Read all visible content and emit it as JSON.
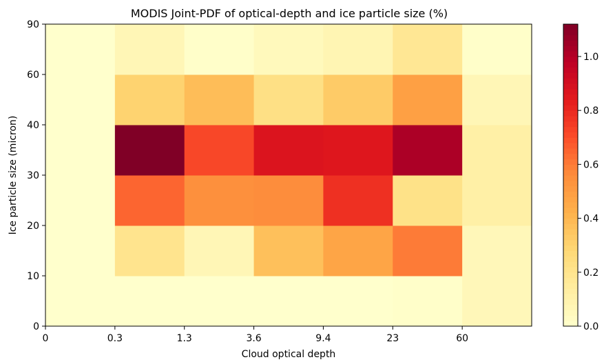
{
  "chart_data": {
    "type": "heatmap",
    "title": "MODIS Joint-PDF of optical-depth and ice particle size (%)",
    "xlabel": "Cloud optical depth",
    "ylabel": "Ice particle size (micron)",
    "x_tick_labels": [
      "0",
      "0.3",
      "1.3",
      "3.6",
      "9.4",
      "23",
      "60"
    ],
    "y_tick_labels": [
      "0",
      "10",
      "20",
      "30",
      "40",
      "60",
      "90"
    ],
    "colorbar_ticks": [
      "0.0",
      "0.2",
      "0.4",
      "0.6",
      "0.8",
      "1.0"
    ],
    "colorbar_range": [
      0,
      1.12
    ],
    "colormap": "YlOrRd",
    "rows_bottom_to_top": [
      [
        0.0,
        0.0,
        0.0,
        0.0,
        0.0,
        0.01,
        0.06
      ],
      [
        0.0,
        0.2,
        0.07,
        0.37,
        0.47,
        0.6,
        0.06
      ],
      [
        0.0,
        0.65,
        0.55,
        0.56,
        0.78,
        0.22,
        0.12
      ],
      [
        0.0,
        1.12,
        0.72,
        0.87,
        0.86,
        1.02,
        0.12
      ],
      [
        0.0,
        0.3,
        0.38,
        0.23,
        0.33,
        0.49,
        0.07
      ],
      [
        0.0,
        0.07,
        0.01,
        0.05,
        0.08,
        0.18,
        0.01
      ]
    ]
  }
}
